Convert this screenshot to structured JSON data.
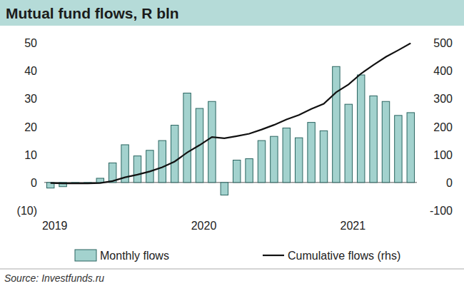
{
  "chart_data": {
    "type": "bar",
    "title": "Mutual fund flows, R bln",
    "source": "Source: Investfunds.ru",
    "categories": [
      "2019",
      null,
      null,
      null,
      null,
      null,
      null,
      null,
      null,
      null,
      null,
      null,
      "2020",
      null,
      null,
      null,
      null,
      null,
      null,
      null,
      null,
      null,
      null,
      null,
      "2021",
      null,
      null,
      null,
      null,
      null
    ],
    "series": [
      {
        "name": "Monthly flows",
        "type": "bar",
        "color": "#a3d2ce",
        "axis": "y",
        "values": [
          -2,
          -1.5,
          0,
          0,
          1.5,
          7,
          13.5,
          9.5,
          11.5,
          15,
          20.5,
          32,
          26.5,
          29,
          -4.5,
          8,
          8.5,
          15,
          16.5,
          19.5,
          16,
          21.5,
          18.5,
          41.5,
          28,
          38.5,
          31,
          29,
          24,
          25
        ]
      },
      {
        "name": "Cumulative flows (rhs)",
        "type": "line",
        "color": "#111111",
        "axis": "y2",
        "line_style": "solid",
        "values": [
          -2,
          -3.5,
          -3.5,
          -3.5,
          -2,
          5,
          18.5,
          28,
          39.5,
          54.5,
          75,
          107,
          133.5,
          162.5,
          158,
          166,
          174.5,
          189.5,
          206,
          225.5,
          241.5,
          263,
          281.5,
          323,
          351,
          389.5,
          420.5,
          449.5,
          473.5,
          498.5
        ]
      }
    ],
    "ylim": [
      -10,
      50
    ],
    "yticks": [
      {
        "value": -10,
        "label": "(10)"
      },
      0,
      10,
      20,
      30,
      40,
      50
    ],
    "y2lim": [
      -100,
      500
    ],
    "y2ticks": [
      -100,
      0,
      100,
      200,
      300,
      400,
      500
    ],
    "grid": false,
    "legend": "bottom"
  }
}
